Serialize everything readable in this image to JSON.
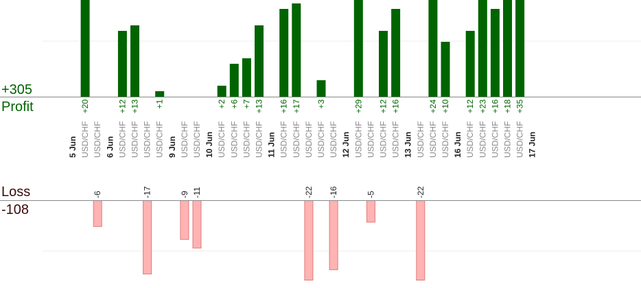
{
  "summary": {
    "profit_total": "+305",
    "profit_label": "Profit",
    "loss_label": "Loss",
    "loss_total": "-108"
  },
  "colors": {
    "profit_bar": "#006400",
    "loss_bar": "#ffb3b3",
    "loss_bar_border": "#e07a7a",
    "profit_text": "#006400",
    "loss_text": "#3a0a0a",
    "axis": "#888888",
    "grid": "#eeeeee",
    "category_text": "#888888",
    "date_text": "#222222"
  },
  "chart_data": {
    "type": "bar",
    "profit_ylim": [
      0,
      16
    ],
    "loss_ylim": [
      0,
      14
    ],
    "categories": [
      {
        "label": "5 Jun",
        "kind": "date"
      },
      {
        "label": "USD/CHF",
        "kind": "trade",
        "value": 20
      },
      {
        "label": "USD/CHF",
        "kind": "trade",
        "value": -6
      },
      {
        "label": "6 Jun",
        "kind": "date"
      },
      {
        "label": "USD/CHF",
        "kind": "trade",
        "value": 12
      },
      {
        "label": "USD/CHF",
        "kind": "trade",
        "value": 13
      },
      {
        "label": "USD/CHF",
        "kind": "trade",
        "value": -17
      },
      {
        "label": "USD/CHF",
        "kind": "trade",
        "value": 1
      },
      {
        "label": "9 Jun",
        "kind": "date"
      },
      {
        "label": "USD/CHF",
        "kind": "trade",
        "value": -9
      },
      {
        "label": "USD/CHF",
        "kind": "trade",
        "value": -11
      },
      {
        "label": "10 Jun",
        "kind": "date"
      },
      {
        "label": "USD/CHF",
        "kind": "trade",
        "value": 2
      },
      {
        "label": "USD/CHF",
        "kind": "trade",
        "value": 6
      },
      {
        "label": "USD/CHF",
        "kind": "trade",
        "value": 7
      },
      {
        "label": "USD/CHF",
        "kind": "trade",
        "value": 13
      },
      {
        "label": "11 Jun",
        "kind": "date"
      },
      {
        "label": "USD/CHF",
        "kind": "trade",
        "value": 16
      },
      {
        "label": "USD/CHF",
        "kind": "trade",
        "value": 17
      },
      {
        "label": "USD/CHF",
        "kind": "trade",
        "value": -22
      },
      {
        "label": "USD/CHF",
        "kind": "trade",
        "value": 3
      },
      {
        "label": "USD/CHF",
        "kind": "trade",
        "value": -16
      },
      {
        "label": "12 Jun",
        "kind": "date"
      },
      {
        "label": "USD/CHF",
        "kind": "trade",
        "value": 29
      },
      {
        "label": "USD/CHF",
        "kind": "trade",
        "value": -5
      },
      {
        "label": "USD/CHF",
        "kind": "trade",
        "value": 12
      },
      {
        "label": "USD/CHF",
        "kind": "trade",
        "value": 16
      },
      {
        "label": "13 Jun",
        "kind": "date"
      },
      {
        "label": "USD/CHF",
        "kind": "trade",
        "value": -22
      },
      {
        "label": "USD/CHF",
        "kind": "trade",
        "value": 24
      },
      {
        "label": "USD/CHF",
        "kind": "trade",
        "value": 10
      },
      {
        "label": "16 Jun",
        "kind": "date"
      },
      {
        "label": "USD/CHF",
        "kind": "trade",
        "value": 12
      },
      {
        "label": "USD/CHF",
        "kind": "trade",
        "value": 23
      },
      {
        "label": "USD/CHF",
        "kind": "trade",
        "value": 16
      },
      {
        "label": "USD/CHF",
        "kind": "trade",
        "value": 18
      },
      {
        "label": "USD/CHF",
        "kind": "trade",
        "value": 35
      },
      {
        "label": "17 Jun",
        "kind": "date"
      }
    ]
  }
}
